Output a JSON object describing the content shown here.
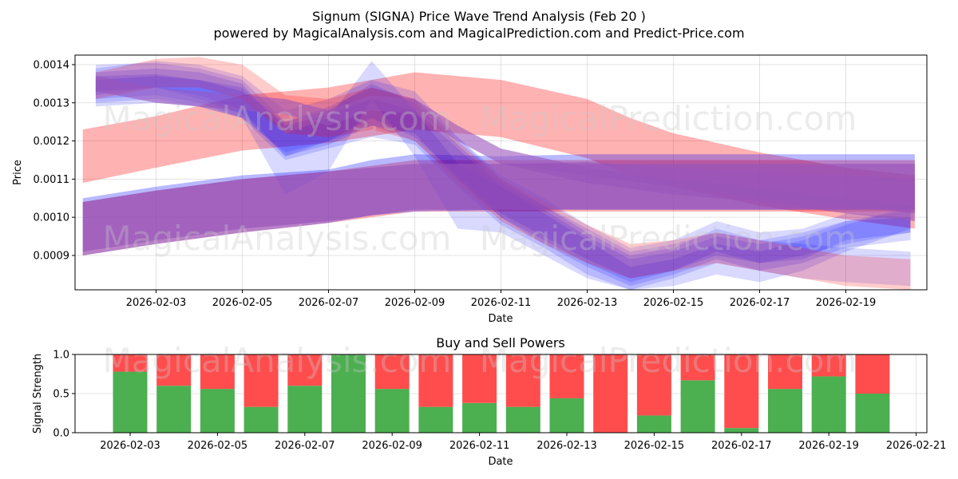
{
  "figure": {
    "title": "Signum (SIGNA) Price Wave Trend Analysis (Feb 20 )",
    "subtitle": "powered by MagicalAnalysis.com and MagicalPrediction.com and Predict-Price.com"
  },
  "watermarks": [
    "MagicalAnalysis.com",
    "MagicalPrediction.com"
  ],
  "colors": {
    "red": "#ff0000",
    "blue": "#0000ff",
    "purple": "#9955bb",
    "buy": "#4caf50",
    "sell": "#ff4d4d"
  },
  "chart_data": [
    {
      "type": "area",
      "title": "",
      "xlabel": "Date",
      "ylabel": "Price",
      "xlim": [
        "2026-02-01T03:00",
        "2026-02-21T12:00"
      ],
      "ylim": [
        0.00081,
        0.001425
      ],
      "x_ticks": [
        "2026-02-03",
        "2026-02-05",
        "2026-02-07",
        "2026-02-09",
        "2026-02-11",
        "2026-02-13",
        "2026-02-15",
        "2026-02-17",
        "2026-02-19"
      ],
      "y_ticks": [
        "0.0009",
        "0.0010",
        "0.0011",
        "0.0012",
        "0.0013",
        "0.0014"
      ],
      "grid": true,
      "bands": [
        {
          "name": "red-upper",
          "color": "red",
          "opacity": 0.3,
          "x": [
            1.3,
            3,
            5,
            7,
            9,
            11,
            13,
            14,
            15,
            17,
            19,
            20.6
          ],
          "upper": [
            0.00123,
            0.001265,
            0.00132,
            0.00134,
            0.00138,
            0.00136,
            0.00131,
            0.00126,
            0.00122,
            0.00117,
            0.00113,
            0.00111
          ],
          "lower": [
            0.00109,
            0.00113,
            0.001175,
            0.001195,
            0.00123,
            0.00121,
            0.001155,
            0.00111,
            0.00108,
            0.00103,
            0.000995,
            0.00097
          ]
        },
        {
          "name": "red-lower",
          "color": "red",
          "opacity": 0.3,
          "x": [
            1.3,
            3,
            5,
            7,
            9,
            11,
            13,
            15,
            17,
            19,
            20.6
          ],
          "upper": [
            0.00104,
            0.00107,
            0.0011,
            0.00112,
            0.00115,
            0.00115,
            0.00115,
            0.00115,
            0.00115,
            0.00115,
            0.00115
          ],
          "lower": [
            0.0009,
            0.00093,
            0.00096,
            0.000985,
            0.001015,
            0.001015,
            0.001015,
            0.001015,
            0.001015,
            0.001015,
            0.001015
          ]
        },
        {
          "name": "blue-lower",
          "color": "blue",
          "opacity": 0.28,
          "x": [
            1.3,
            3,
            5,
            7,
            8,
            9,
            11,
            13,
            15,
            17,
            19,
            20.6
          ],
          "upper": [
            0.00105,
            0.00108,
            0.00111,
            0.001125,
            0.00115,
            0.001165,
            0.00116,
            0.001165,
            0.001165,
            0.001165,
            0.001165,
            0.001165
          ],
          "lower": [
            0.0009,
            0.00093,
            0.00096,
            0.000985,
            0.001005,
            0.001015,
            0.00102,
            0.00102,
            0.00102,
            0.00102,
            0.00102,
            0.00102
          ]
        },
        {
          "name": "wave-1",
          "color": "blue",
          "opacity": 0.15,
          "x": [
            1.6,
            3,
            4,
            5,
            6,
            7,
            8,
            9,
            10,
            11,
            12,
            13,
            14,
            15,
            16,
            17,
            18,
            19,
            20.5
          ],
          "upper": [
            0.00139,
            0.00141,
            0.0014,
            0.00137,
            0.00128,
            0.00131,
            0.00136,
            0.00133,
            0.00121,
            0.00111,
            0.00105,
            0.00098,
            0.00092,
            0.00094,
            0.00099,
            0.00096,
            0.00097,
            0.00101,
            0.001
          ],
          "lower": [
            0.00132,
            0.00134,
            0.00132,
            0.00128,
            0.00116,
            0.00119,
            0.00124,
            0.00122,
            0.0011,
            0.001,
            0.00094,
            0.00088,
            0.00083,
            0.00086,
            0.00091,
            0.00088,
            0.00089,
            0.00094,
            0.00096
          ]
        },
        {
          "name": "wave-2",
          "color": "blue",
          "opacity": 0.15,
          "x": [
            1.6,
            3,
            4,
            5,
            6,
            7,
            8,
            9,
            10,
            11,
            12,
            13,
            14,
            15,
            16,
            17,
            18,
            19,
            20.5
          ],
          "upper": [
            0.00137,
            0.001375,
            0.00136,
            0.00134,
            0.00124,
            0.00127,
            0.00131,
            0.00128,
            0.00118,
            0.00108,
            0.00102,
            0.00095,
            0.00089,
            0.00091,
            0.00095,
            0.00093,
            0.00095,
            0.00099,
            0.001
          ],
          "lower": [
            0.0013,
            0.00131,
            0.00129,
            0.00126,
            0.00115,
            0.00118,
            0.00121,
            0.00119,
            0.00108,
            0.00098,
            0.00092,
            0.00085,
            0.00081,
            0.00084,
            0.00088,
            0.00086,
            0.00088,
            0.00092,
            0.00094
          ]
        },
        {
          "name": "wave-3",
          "color": "blue",
          "opacity": 0.15,
          "x": [
            1.6,
            3,
            4,
            5,
            6,
            7,
            8,
            9,
            10,
            11,
            12,
            13,
            14,
            15,
            16,
            17,
            18,
            19,
            20.5
          ],
          "upper": [
            0.0014,
            0.001405,
            0.00139,
            0.00136,
            0.00125,
            0.00129,
            0.00134,
            0.00131,
            0.00121,
            0.0011,
            0.00103,
            0.00096,
            0.0009,
            0.00092,
            0.00097,
            0.00094,
            0.00093,
            0.00092,
            0.00091
          ],
          "lower": [
            0.00133,
            0.00134,
            0.00131,
            0.00127,
            0.00116,
            0.0012,
            0.00124,
            0.0012,
            0.0011,
            0.001,
            0.00093,
            0.00087,
            0.00082,
            0.00085,
            0.00089,
            0.00086,
            0.00084,
            0.00083,
            0.00082
          ]
        },
        {
          "name": "wave-4",
          "color": "blue",
          "opacity": 0.15,
          "x": [
            1.6,
            3,
            4,
            5,
            6,
            7,
            8,
            9,
            10,
            11,
            12,
            13,
            14,
            15,
            16,
            17,
            18,
            19,
            20.5
          ],
          "upper": [
            0.00138,
            0.00139,
            0.00138,
            0.00135,
            0.00122,
            0.00126,
            0.00141,
            0.00128,
            0.00114,
            0.00108,
            0.00101,
            0.00094,
            0.00087,
            0.00089,
            0.00093,
            0.00091,
            0.00094,
            0.00098,
            0.00103
          ],
          "lower": [
            0.00131,
            0.00132,
            0.0013,
            0.00126,
            0.00106,
            0.00112,
            0.00131,
            0.00116,
            0.00097,
            0.00096,
            0.0009,
            0.00084,
            0.00081,
            0.00082,
            0.00085,
            0.00083,
            0.00086,
            0.00091,
            0.00097
          ]
        },
        {
          "name": "wave-5",
          "color": "blue",
          "opacity": 0.15,
          "x": [
            1.6,
            3,
            4,
            5,
            6,
            7,
            8,
            9,
            10,
            11,
            12,
            13,
            14,
            15,
            16,
            17,
            18,
            19,
            20.5
          ],
          "upper": [
            0.00136,
            0.00137,
            0.00136,
            0.00133,
            0.00125,
            0.00128,
            0.00135,
            0.0013,
            0.00119,
            0.00109,
            0.00103,
            0.00097,
            0.00091,
            0.00093,
            0.00096,
            0.00094,
            0.00096,
            0.00099,
            0.00102
          ],
          "lower": [
            0.00129,
            0.0013,
            0.00129,
            0.00126,
            0.00117,
            0.0012,
            0.00126,
            0.00121,
            0.00111,
            0.00101,
            0.00095,
            0.00089,
            0.00084,
            0.00086,
            0.0009,
            0.00088,
            0.0009,
            0.00093,
            0.00096
          ]
        },
        {
          "name": "red-wave",
          "color": "red",
          "opacity": 0.2,
          "x": [
            1.6,
            3,
            4,
            5,
            6,
            7,
            8,
            9,
            10,
            11,
            12,
            13,
            14,
            15,
            16,
            17,
            18,
            19,
            20.5
          ],
          "upper": [
            0.00138,
            0.001415,
            0.00142,
            0.0014,
            0.00132,
            0.00131,
            0.00134,
            0.00131,
            0.0012,
            0.0011,
            0.00104,
            0.00098,
            0.00093,
            0.00094,
            0.00096,
            0.00094,
            0.00092,
            0.0009,
            0.00089
          ],
          "lower": [
            0.00131,
            0.00134,
            0.00134,
            0.00131,
            0.00122,
            0.00121,
            0.00123,
            0.0012,
            0.00109,
            0.00099,
            0.00093,
            0.00088,
            0.00084,
            0.00086,
            0.00088,
            0.00086,
            0.00084,
            0.00082,
            0.00081
          ]
        },
        {
          "name": "purple-upper",
          "color": "purple",
          "opacity": 0.6,
          "x": [
            1.6,
            3,
            5,
            6,
            7,
            8,
            9,
            10,
            11,
            13,
            15,
            17,
            19,
            20.6
          ],
          "upper": [
            0.00137,
            0.00134,
            0.00132,
            0.00131,
            0.00128,
            0.00132,
            0.00131,
            0.00124,
            0.00118,
            0.00113,
            0.0011,
            0.00108,
            0.00105,
            0.00103
          ],
          "lower": [
            0.00133,
            0.0013,
            0.00128,
            0.00127,
            0.00124,
            0.00128,
            0.00127,
            0.0012,
            0.00114,
            0.00109,
            0.00106,
            0.00104,
            0.00101,
            0.00099
          ]
        },
        {
          "name": "purple-base",
          "color": "purple",
          "opacity": 0.7,
          "x": [
            1.3,
            3,
            5,
            7,
            9,
            11,
            13,
            15,
            17,
            19,
            20.6
          ],
          "upper": [
            0.00104,
            0.00107,
            0.0011,
            0.00112,
            0.00114,
            0.00114,
            0.00114,
            0.00114,
            0.00114,
            0.00114,
            0.00114
          ],
          "lower": [
            0.00091,
            0.00094,
            0.00097,
            0.00099,
            0.00102,
            0.00102,
            0.00102,
            0.00102,
            0.00102,
            0.00102,
            0.00102
          ]
        },
        {
          "name": "purple-wedge",
          "color": "purple",
          "opacity": 0.6,
          "x": [
            11,
            13,
            15,
            17,
            19,
            20.6
          ],
          "upper": [
            0.00114,
            0.001145,
            0.00113,
            0.00112,
            0.00111,
            0.0011
          ],
          "lower": [
            0.00114,
            0.00111,
            0.00108,
            0.00105,
            0.00103,
            0.00101
          ]
        }
      ]
    },
    {
      "type": "bar",
      "title": "Buy and Sell Powers",
      "xlabel": "Date",
      "ylabel": "Signal Strength",
      "categories": [
        "2026-02-03",
        "2026-02-04",
        "2026-02-05",
        "2026-02-06",
        "2026-02-07",
        "2026-02-08",
        "2026-02-09",
        "2026-02-10",
        "2026-02-11",
        "2026-02-12",
        "2026-02-13",
        "2026-02-14",
        "2026-02-15",
        "2026-02-16",
        "2026-02-17",
        "2026-02-18",
        "2026-02-19",
        "2026-02-20"
      ],
      "x_ticks": [
        "2026-02-03",
        "2026-02-05",
        "2026-02-07",
        "2026-02-09",
        "2026-02-11",
        "2026-02-13",
        "2026-02-15",
        "2026-02-17",
        "2026-02-19",
        "2026-02-21"
      ],
      "y_ticks": [
        "0.0",
        "0.5",
        "1.0"
      ],
      "ylim": [
        0,
        1
      ],
      "series": [
        {
          "name": "Buy",
          "color": "buy",
          "values": [
            0.78,
            0.6,
            0.56,
            0.33,
            0.6,
            1.0,
            0.56,
            0.33,
            0.38,
            0.33,
            0.44,
            0.0,
            0.22,
            0.67,
            0.06,
            0.56,
            0.72,
            0.5
          ]
        },
        {
          "name": "Sell",
          "color": "sell",
          "values": [
            0.22,
            0.4,
            0.44,
            0.67,
            0.4,
            0.0,
            0.44,
            0.67,
            0.62,
            0.67,
            0.56,
            1.0,
            0.78,
            0.33,
            0.94,
            0.44,
            0.28,
            0.5
          ]
        }
      ]
    }
  ]
}
